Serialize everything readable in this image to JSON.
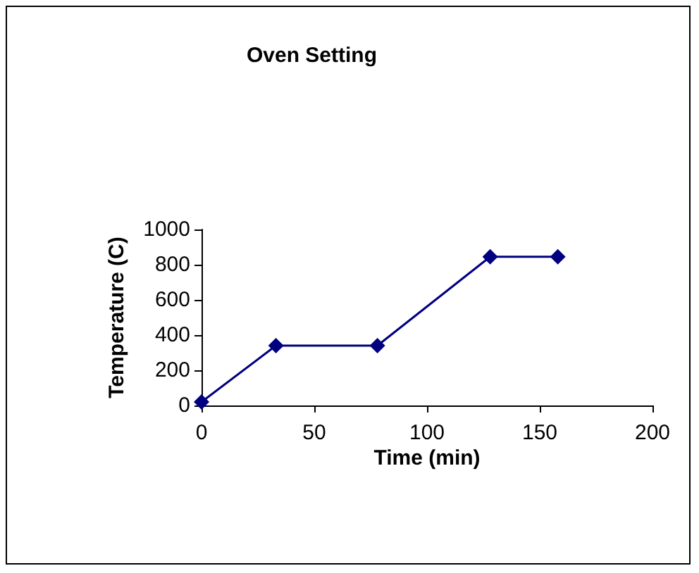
{
  "chart_data": {
    "type": "line",
    "title": "Oven Setting",
    "xlabel": "Time (min)",
    "ylabel": "Temperature (C)",
    "x": [
      0,
      33,
      78,
      128,
      158
    ],
    "series": [
      {
        "color": "#000080",
        "values": [
          20,
          340,
          340,
          845,
          845
        ]
      }
    ],
    "xlim": [
      0,
      200
    ],
    "xticks": [
      0,
      50,
      100,
      150,
      200
    ],
    "ylim": [
      0,
      1000
    ],
    "yticks": [
      0,
      200,
      400,
      600,
      800,
      1000
    ],
    "grid": false,
    "marker": "diamond",
    "line_style": "solid"
  }
}
